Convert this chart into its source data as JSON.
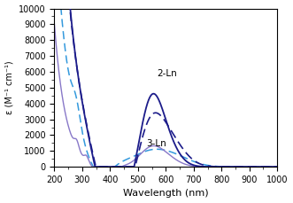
{
  "xlabel": "Wavelength (nm)",
  "ylabel": "ε (M⁻¹ cm⁻¹)",
  "xlim": [
    200,
    1000
  ],
  "ylim": [
    0,
    10000
  ],
  "yticks": [
    0,
    1000,
    2000,
    3000,
    4000,
    5000,
    6000,
    7000,
    8000,
    9000,
    10000
  ],
  "xticks": [
    200,
    300,
    400,
    500,
    600,
    700,
    800,
    900,
    1000
  ],
  "label_2Ln": "2-Ln",
  "label_3Ln": "3-Ln",
  "color_dark_navy": "#1c1c8a",
  "color_light_blue": "#3399dd",
  "color_purple": "#8878c8",
  "background": "#ffffff"
}
